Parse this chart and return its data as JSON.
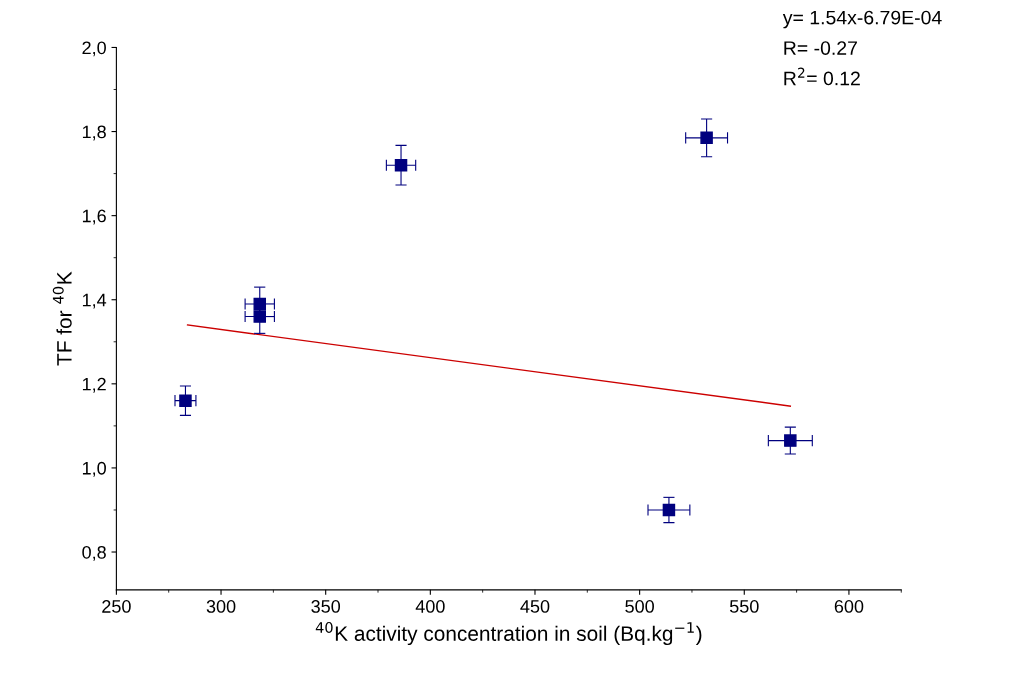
{
  "chart_data": {
    "type": "scatter",
    "xlabel": "$^{40}$K activity concentration in soil (Bq.kg$^{−1}$)",
    "ylabel": "TF for $^{40}$K",
    "annotations": [
      "y= 1.54x-6.79E-04",
      "R= -0.27",
      "R$^{2}$= 0.12"
    ],
    "xlim": [
      250,
      625
    ],
    "xticks": [
      250,
      300,
      350,
      400,
      450,
      500,
      550,
      600
    ],
    "ylim": [
      0.71,
      2.0
    ],
    "yticks": [
      {
        "value": 0.8,
        "label": "0,8"
      },
      {
        "value": 1.0,
        "label": "1,0"
      },
      {
        "value": 1.2,
        "label": "1,2"
      },
      {
        "value": 1.4,
        "label": "1,4"
      },
      {
        "value": 1.6,
        "label": "1,6"
      },
      {
        "value": 1.8,
        "label": "1,8"
      },
      {
        "value": 2.0,
        "label": "2,0"
      }
    ],
    "grid": false,
    "legend": false,
    "series": [
      {
        "color": "#00007f",
        "marker": "square",
        "x": [
          283,
          318.5,
          318.5,
          386,
          532,
          514,
          572
        ],
        "values": [
          1.16,
          1.39,
          1.36,
          1.72,
          1.785,
          0.9,
          1.065
        ],
        "errors": [
          0.035,
          0.04,
          0.04,
          0.047,
          0.045,
          0.03,
          0.032
        ],
        "xerrors": [
          5,
          7,
          7,
          7,
          10,
          10,
          10.5
        ]
      },
      {
        "type": "line",
        "color": "#cc0000",
        "x": [
          284,
          572
        ],
        "values": [
          1.34,
          1.147
        ]
      }
    ]
  }
}
